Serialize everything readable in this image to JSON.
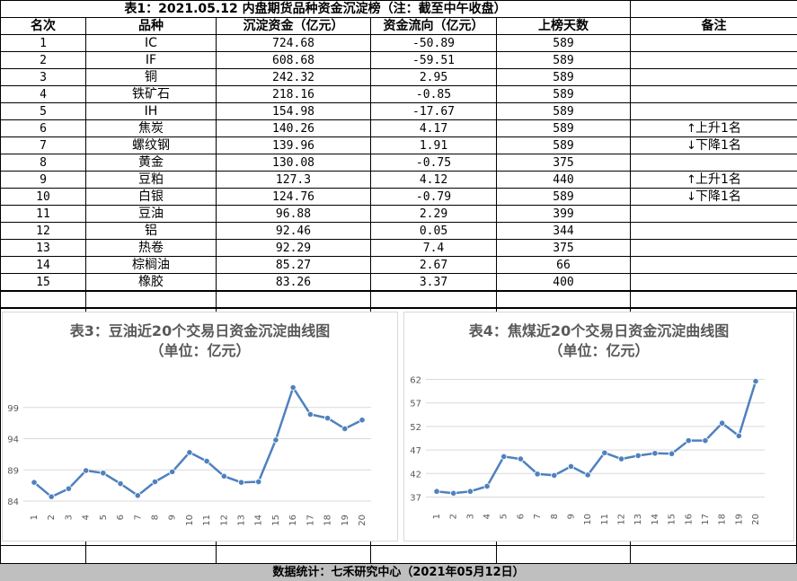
{
  "table": {
    "title": "表1：2021.05.12 内盘期货品种资金沉淀榜（注：截至中午收盘）",
    "headers": [
      "名次",
      "品种",
      "沉淀资金（亿元）",
      "资金流向（亿元）",
      "上榜天数",
      "备注"
    ],
    "rows": [
      {
        "rank": "1",
        "name": "IC",
        "capital": "724.68",
        "flow": "-50.89",
        "days": "589",
        "note": "",
        "arrow": ""
      },
      {
        "rank": "2",
        "name": "IF",
        "capital": "608.68",
        "flow": "-59.51",
        "days": "589",
        "note": "",
        "arrow": ""
      },
      {
        "rank": "3",
        "name": "铜",
        "capital": "242.32",
        "flow": "2.95",
        "days": "589",
        "note": "",
        "arrow": ""
      },
      {
        "rank": "4",
        "name": "铁矿石",
        "capital": "218.16",
        "flow": "-0.85",
        "days": "589",
        "note": "",
        "arrow": ""
      },
      {
        "rank": "5",
        "name": "IH",
        "capital": "154.98",
        "flow": "-17.67",
        "days": "589",
        "note": "",
        "arrow": ""
      },
      {
        "rank": "6",
        "name": "焦炭",
        "capital": "140.26",
        "flow": "4.17",
        "days": "589",
        "note": "上升1名",
        "arrow": "↑"
      },
      {
        "rank": "7",
        "name": "螺纹钢",
        "capital": "139.96",
        "flow": "1.91",
        "days": "589",
        "note": "下降1名",
        "arrow": "↓"
      },
      {
        "rank": "8",
        "name": "黄金",
        "capital": "130.08",
        "flow": "-0.75",
        "days": "375",
        "note": "",
        "arrow": ""
      },
      {
        "rank": "9",
        "name": "豆粕",
        "capital": "127.3",
        "flow": "4.12",
        "days": "440",
        "note": "上升1名",
        "arrow": "↑"
      },
      {
        "rank": "10",
        "name": "白银",
        "capital": "124.76",
        "flow": "-0.79",
        "days": "589",
        "note": "下降1名",
        "arrow": "↓"
      },
      {
        "rank": "11",
        "name": "豆油",
        "capital": "96.88",
        "flow": "2.29",
        "days": "399",
        "note": "",
        "arrow": ""
      },
      {
        "rank": "12",
        "name": "铝",
        "capital": "92.46",
        "flow": "0.05",
        "days": "344",
        "note": "",
        "arrow": ""
      },
      {
        "rank": "13",
        "name": "热卷",
        "capital": "92.29",
        "flow": "7.4",
        "days": "375",
        "note": "",
        "arrow": ""
      },
      {
        "rank": "14",
        "name": "棕榈油",
        "capital": "85.27",
        "flow": "2.67",
        "days": "66",
        "note": "",
        "arrow": ""
      },
      {
        "rank": "15",
        "name": "橡胶",
        "capital": "83.26",
        "flow": "3.37",
        "days": "400",
        "note": "",
        "arrow": ""
      }
    ]
  },
  "chart_data": [
    {
      "type": "line",
      "title": "表3：豆油近20个交易日资金沉淀曲线图",
      "subtitle": "（单位：亿元）",
      "x": [
        "1",
        "2",
        "3",
        "4",
        "5",
        "6",
        "7",
        "8",
        "9",
        "10",
        "11",
        "12",
        "13",
        "14",
        "15",
        "16",
        "17",
        "18",
        "19",
        "20"
      ],
      "series": [
        {
          "values": [
            87.0,
            84.7,
            86.0,
            88.9,
            88.5,
            86.8,
            84.9,
            87.1,
            88.7,
            91.8,
            90.4,
            88.0,
            87.0,
            87.1,
            93.8,
            102.2,
            97.9,
            97.3,
            95.6,
            97.0
          ]
        }
      ],
      "yticks": [
        84,
        89,
        94,
        99
      ],
      "ylim": [
        83,
        103
      ],
      "color": "#4f81bd",
      "grid": true,
      "legend": "none"
    },
    {
      "type": "line",
      "title": "表4：焦煤近20个交易日资金沉淀曲线图",
      "subtitle": "（单位：亿元）",
      "x": [
        "1",
        "2",
        "3",
        "4",
        "5",
        "6",
        "7",
        "8",
        "9",
        "10",
        "11",
        "12",
        "13",
        "14",
        "15",
        "16",
        "17",
        "18",
        "19",
        "20"
      ],
      "series": [
        {
          "values": [
            38.2,
            37.8,
            38.2,
            39.3,
            45.6,
            45.1,
            41.9,
            41.6,
            43.5,
            41.7,
            46.4,
            45.1,
            45.8,
            46.3,
            46.2,
            49.0,
            49.0,
            52.7,
            50.0,
            61.6
          ]
        }
      ],
      "yticks": [
        37,
        42,
        47,
        52,
        57,
        62
      ],
      "ylim": [
        35,
        64
      ],
      "color": "#4f81bd",
      "grid": true,
      "legend": "none"
    }
  ],
  "footer": "数据统计：七禾研究中心（2021年05月12日）"
}
